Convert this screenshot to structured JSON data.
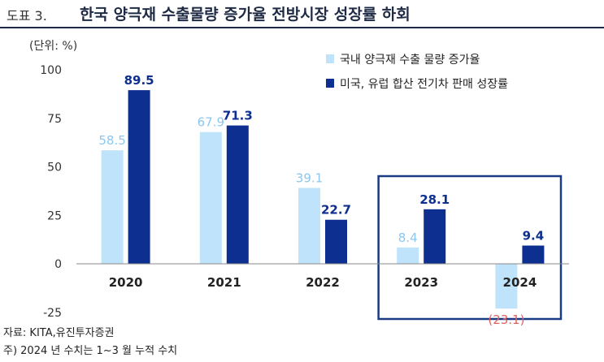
{
  "header": {
    "figure_label": "도표 3.",
    "title": "한국 양극재 수출물량 증가율 전방시장 성장률 하회"
  },
  "chart_data": {
    "type": "bar",
    "unit_label": "(단위: %)",
    "categories": [
      "2020",
      "2021",
      "2022",
      "2023",
      "2024"
    ],
    "series": [
      {
        "name": "국내 양극재 수출 물량 증가율",
        "color": "#bfe3fb",
        "label_color": "#8cc7ef",
        "values": [
          58.5,
          67.9,
          39.1,
          8.4,
          -23.1
        ],
        "labels": [
          "58.5",
          "67.9",
          "39.1",
          "8.4",
          "(23.1)"
        ]
      },
      {
        "name": "미국, 유럽 합산 전기차 판매 성장률",
        "color": "#0d2f8f",
        "label_color": "#0d2f8f",
        "values": [
          89.5,
          71.3,
          22.7,
          28.1,
          9.4
        ],
        "labels": [
          "89.5",
          "71.3",
          "22.7",
          "28.1",
          "9.4"
        ]
      }
    ],
    "negative_label_color": "#e26060",
    "yticks": [
      "100",
      "75",
      "50",
      "25",
      "0",
      "-25"
    ],
    "ylim": [
      -25,
      100
    ],
    "highlight": [
      "2023",
      "2024"
    ]
  },
  "footer": {
    "source": "자료: KITA,유진투자증권",
    "note": "주) 2024 년 수치는 1~3 월 누적 수치"
  }
}
